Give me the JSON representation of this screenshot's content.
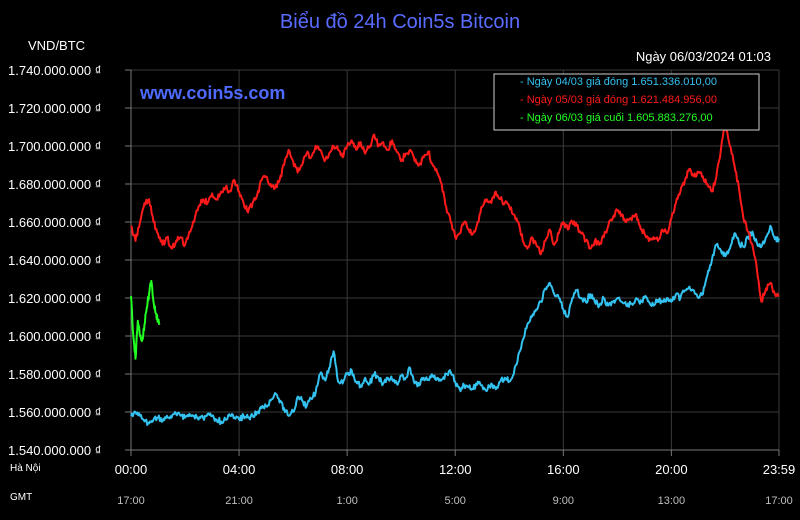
{
  "chart_data": {
    "type": "line",
    "title": "Biểu đồ 24h Coin5s Bitcoin",
    "unit_label": "VND/BTC",
    "datetime": "Ngày 06/03/2024 01:03",
    "watermark": "www.coin5s.com",
    "ylim": [
      1540000000,
      1740000000
    ],
    "yticks": [
      {
        "value": 1740000000,
        "label": "1.740.000.000 ₫"
      },
      {
        "value": 1720000000,
        "label": "1.720.000.000 ₫"
      },
      {
        "value": 1700000000,
        "label": "1.700.000.000 ₫"
      },
      {
        "value": 1680000000,
        "label": "1.680.000.000 ₫"
      },
      {
        "value": 1660000000,
        "label": "1.660.000.000 ₫"
      },
      {
        "value": 1640000000,
        "label": "1.640.000.000 ₫"
      },
      {
        "value": 1620000000,
        "label": "1.620.000.000 ₫"
      },
      {
        "value": 1600000000,
        "label": "1.600.000.000 ₫"
      },
      {
        "value": 1580000000,
        "label": "1.580.000.000 ₫"
      },
      {
        "value": 1560000000,
        "label": "1.560.000.000 ₫"
      },
      {
        "value": 1540000000,
        "label": "1.540.000.000 ₫"
      }
    ],
    "xlim": [
      0,
      1439
    ],
    "xticks": [
      {
        "minute": 0,
        "label": "00:00",
        "gmt": "17:00"
      },
      {
        "minute": 240,
        "label": "04:00",
        "gmt": "21:00"
      },
      {
        "minute": 480,
        "label": "08:00",
        "gmt": "1:00"
      },
      {
        "minute": 720,
        "label": "12:00",
        "gmt": "5:00"
      },
      {
        "minute": 960,
        "label": "16:00",
        "gmt": "9:00"
      },
      {
        "minute": 1200,
        "label": "20:00",
        "gmt": "13:00"
      },
      {
        "minute": 1439,
        "label": "23:59",
        "gmt": "17:00"
      }
    ],
    "row_labels": {
      "local": "Hà Nội",
      "gmt": "GMT"
    },
    "grid": true,
    "legend_position": "top-right",
    "series": [
      {
        "name": "Ngày 04/03 giá đóng 1.651.336.010,00",
        "color": "#33c2f0",
        "x": [
          0,
          10,
          20,
          30,
          40,
          50,
          60,
          70,
          80,
          90,
          100,
          110,
          120,
          130,
          140,
          150,
          160,
          170,
          180,
          190,
          200,
          210,
          220,
          230,
          240,
          250,
          260,
          270,
          280,
          290,
          300,
          310,
          320,
          330,
          340,
          350,
          360,
          370,
          380,
          390,
          400,
          410,
          420,
          430,
          440,
          450,
          460,
          470,
          480,
          490,
          500,
          510,
          520,
          530,
          540,
          550,
          560,
          570,
          580,
          590,
          600,
          610,
          620,
          630,
          640,
          650,
          660,
          670,
          680,
          690,
          700,
          710,
          720,
          730,
          740,
          750,
          760,
          770,
          780,
          790,
          800,
          810,
          820,
          830,
          840,
          850,
          860,
          870,
          880,
          890,
          900,
          910,
          920,
          930,
          940,
          950,
          960,
          970,
          980,
          990,
          1000,
          1010,
          1020,
          1030,
          1040,
          1050,
          1060,
          1070,
          1080,
          1090,
          1100,
          1110,
          1120,
          1130,
          1140,
          1150,
          1160,
          1170,
          1180,
          1190,
          1200,
          1210,
          1220,
          1230,
          1240,
          1250,
          1260,
          1270,
          1280,
          1290,
          1300,
          1310,
          1320,
          1330,
          1340,
          1350,
          1360,
          1370,
          1380,
          1390,
          1400,
          1410,
          1420,
          1430,
          1439
        ],
        "values": [
          1558000000,
          1560000000,
          1558000000,
          1555000000,
          1554000000,
          1556000000,
          1557000000,
          1555000000,
          1558000000,
          1557000000,
          1559000000,
          1558000000,
          1557000000,
          1559000000,
          1558000000,
          1556000000,
          1557000000,
          1559000000,
          1558000000,
          1556000000,
          1555000000,
          1556000000,
          1558000000,
          1557000000,
          1556000000,
          1558000000,
          1557000000,
          1558000000,
          1560000000,
          1562000000,
          1563000000,
          1566000000,
          1570000000,
          1565000000,
          1562000000,
          1558000000,
          1560000000,
          1568000000,
          1566000000,
          1563000000,
          1567000000,
          1570000000,
          1580000000,
          1577000000,
          1583000000,
          1592000000,
          1576000000,
          1575000000,
          1580000000,
          1582000000,
          1576000000,
          1574000000,
          1578000000,
          1575000000,
          1580000000,
          1578000000,
          1575000000,
          1578000000,
          1577000000,
          1575000000,
          1579000000,
          1578000000,
          1583000000,
          1575000000,
          1574000000,
          1578000000,
          1577000000,
          1579000000,
          1578000000,
          1577000000,
          1580000000,
          1581000000,
          1576000000,
          1572000000,
          1574000000,
          1573000000,
          1572000000,
          1576000000,
          1574000000,
          1571000000,
          1575000000,
          1572000000,
          1576000000,
          1578000000,
          1576000000,
          1580000000,
          1590000000,
          1598000000,
          1606000000,
          1610000000,
          1614000000,
          1618000000,
          1625000000,
          1628000000,
          1622000000,
          1620000000,
          1614000000,
          1610000000,
          1620000000,
          1624000000,
          1620000000,
          1618000000,
          1622000000,
          1618000000,
          1616000000,
          1620000000,
          1616000000,
          1618000000,
          1620000000,
          1618000000,
          1616000000,
          1617000000,
          1619000000,
          1617000000,
          1620000000,
          1618000000,
          1616000000,
          1619000000,
          1618000000,
          1620000000,
          1618000000,
          1622000000,
          1620000000,
          1624000000,
          1626000000,
          1624000000,
          1620000000,
          1622000000,
          1632000000,
          1640000000,
          1648000000,
          1645000000,
          1642000000,
          1646000000,
          1654000000,
          1649000000,
          1647000000,
          1652000000,
          1655000000,
          1649000000,
          1647000000,
          1652000000,
          1658000000,
          1651000000,
          1651336010
        ]
      },
      {
        "name": "Ngày 05/03 giá đóng 1.621.484.956,00",
        "color": "#ff1a1a",
        "x": [
          0,
          10,
          20,
          30,
          40,
          50,
          60,
          70,
          80,
          90,
          100,
          110,
          120,
          130,
          140,
          150,
          160,
          170,
          180,
          190,
          200,
          210,
          220,
          230,
          240,
          250,
          260,
          270,
          280,
          290,
          300,
          310,
          320,
          330,
          340,
          350,
          360,
          370,
          380,
          390,
          400,
          410,
          420,
          430,
          440,
          450,
          460,
          470,
          480,
          490,
          500,
          510,
          520,
          530,
          540,
          550,
          560,
          570,
          580,
          590,
          600,
          610,
          620,
          630,
          640,
          650,
          660,
          670,
          680,
          690,
          700,
          710,
          720,
          730,
          740,
          750,
          760,
          770,
          780,
          790,
          800,
          810,
          820,
          830,
          840,
          850,
          860,
          870,
          880,
          890,
          900,
          910,
          920,
          930,
          940,
          950,
          960,
          970,
          980,
          990,
          1000,
          1010,
          1020,
          1030,
          1040,
          1050,
          1060,
          1070,
          1080,
          1090,
          1100,
          1110,
          1120,
          1130,
          1140,
          1150,
          1160,
          1170,
          1180,
          1190,
          1200,
          1210,
          1220,
          1230,
          1240,
          1250,
          1260,
          1270,
          1280,
          1290,
          1300,
          1310,
          1320,
          1330,
          1340,
          1350,
          1360,
          1370,
          1380,
          1390,
          1400,
          1410,
          1420,
          1430,
          1439
        ],
        "values": [
          1658000000,
          1650000000,
          1660000000,
          1670000000,
          1672000000,
          1660000000,
          1654000000,
          1648000000,
          1652000000,
          1646000000,
          1650000000,
          1652000000,
          1648000000,
          1655000000,
          1660000000,
          1668000000,
          1672000000,
          1670000000,
          1675000000,
          1672000000,
          1676000000,
          1678000000,
          1676000000,
          1682000000,
          1676000000,
          1670000000,
          1665000000,
          1670000000,
          1674000000,
          1682000000,
          1684000000,
          1680000000,
          1678000000,
          1682000000,
          1690000000,
          1698000000,
          1692000000,
          1686000000,
          1690000000,
          1696000000,
          1694000000,
          1700000000,
          1698000000,
          1692000000,
          1696000000,
          1700000000,
          1698000000,
          1694000000,
          1700000000,
          1703000000,
          1698000000,
          1702000000,
          1696000000,
          1700000000,
          1706000000,
          1700000000,
          1702000000,
          1698000000,
          1703000000,
          1697000000,
          1692000000,
          1696000000,
          1698000000,
          1692000000,
          1690000000,
          1694000000,
          1697000000,
          1690000000,
          1686000000,
          1680000000,
          1668000000,
          1660000000,
          1652000000,
          1654000000,
          1660000000,
          1656000000,
          1654000000,
          1660000000,
          1668000000,
          1672000000,
          1670000000,
          1676000000,
          1672000000,
          1670000000,
          1668000000,
          1664000000,
          1660000000,
          1650000000,
          1646000000,
          1652000000,
          1648000000,
          1643000000,
          1650000000,
          1656000000,
          1648000000,
          1654000000,
          1660000000,
          1656000000,
          1660000000,
          1658000000,
          1654000000,
          1650000000,
          1646000000,
          1650000000,
          1648000000,
          1652000000,
          1658000000,
          1662000000,
          1666000000,
          1664000000,
          1660000000,
          1662000000,
          1664000000,
          1658000000,
          1654000000,
          1650000000,
          1652000000,
          1650000000,
          1656000000,
          1654000000,
          1662000000,
          1670000000,
          1676000000,
          1682000000,
          1688000000,
          1684000000,
          1686000000,
          1684000000,
          1680000000,
          1676000000,
          1684000000,
          1698000000,
          1712000000,
          1700000000,
          1690000000,
          1678000000,
          1662000000,
          1655000000,
          1648000000,
          1635000000,
          1618000000,
          1625000000,
          1628000000,
          1622000000,
          1621484956
        ]
      },
      {
        "name": "Ngày 06/03 giá cuối 1.605.883.276,00",
        "color": "#22ff22",
        "x": [
          0,
          5,
          10,
          15,
          20,
          25,
          30,
          35,
          40,
          45,
          50,
          55,
          60,
          63
        ],
        "values": [
          1621000000,
          1600000000,
          1588000000,
          1608000000,
          1600000000,
          1598000000,
          1606000000,
          1615000000,
          1622000000,
          1629000000,
          1618000000,
          1612000000,
          1608000000,
          1605883276
        ]
      }
    ]
  }
}
